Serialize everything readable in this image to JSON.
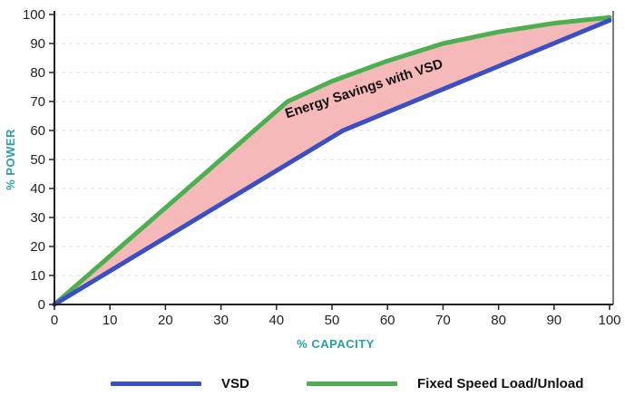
{
  "chart_data": {
    "type": "line",
    "title": "",
    "xlabel": "% CAPACITY",
    "ylabel": "% POWER",
    "xlim": [
      0,
      100
    ],
    "ylim": [
      0,
      100
    ],
    "x_ticks": [
      "0",
      "10",
      "20",
      "30",
      "40",
      "50",
      "60",
      "70",
      "80",
      "90",
      "100"
    ],
    "y_ticks": [
      "0",
      "10",
      "20",
      "30",
      "40",
      "50",
      "60",
      "70",
      "80",
      "90",
      "100"
    ],
    "grid": "horizontal-dashed",
    "legend_position": "bottom",
    "series": [
      {
        "name": "VSD",
        "color": "#3a4fc4",
        "points": [
          [
            0,
            0
          ],
          [
            52,
            60
          ],
          [
            100,
            98
          ]
        ]
      },
      {
        "name": "Fixed Speed Load/Unload",
        "color": "#4caf50",
        "points": [
          [
            0,
            0
          ],
          [
            42,
            70
          ],
          [
            50,
            77
          ],
          [
            60,
            84
          ],
          [
            70,
            90
          ],
          [
            80,
            94
          ],
          [
            90,
            97
          ],
          [
            100,
            99
          ]
        ]
      }
    ],
    "shaded_region": {
      "between": [
        "VSD",
        "Fixed Speed Load/Unload"
      ],
      "color": "#f6b9b9"
    },
    "annotations": [
      {
        "text": "Energy Savings with VSD",
        "x": 56,
        "y": 73,
        "angle": -18
      }
    ]
  }
}
